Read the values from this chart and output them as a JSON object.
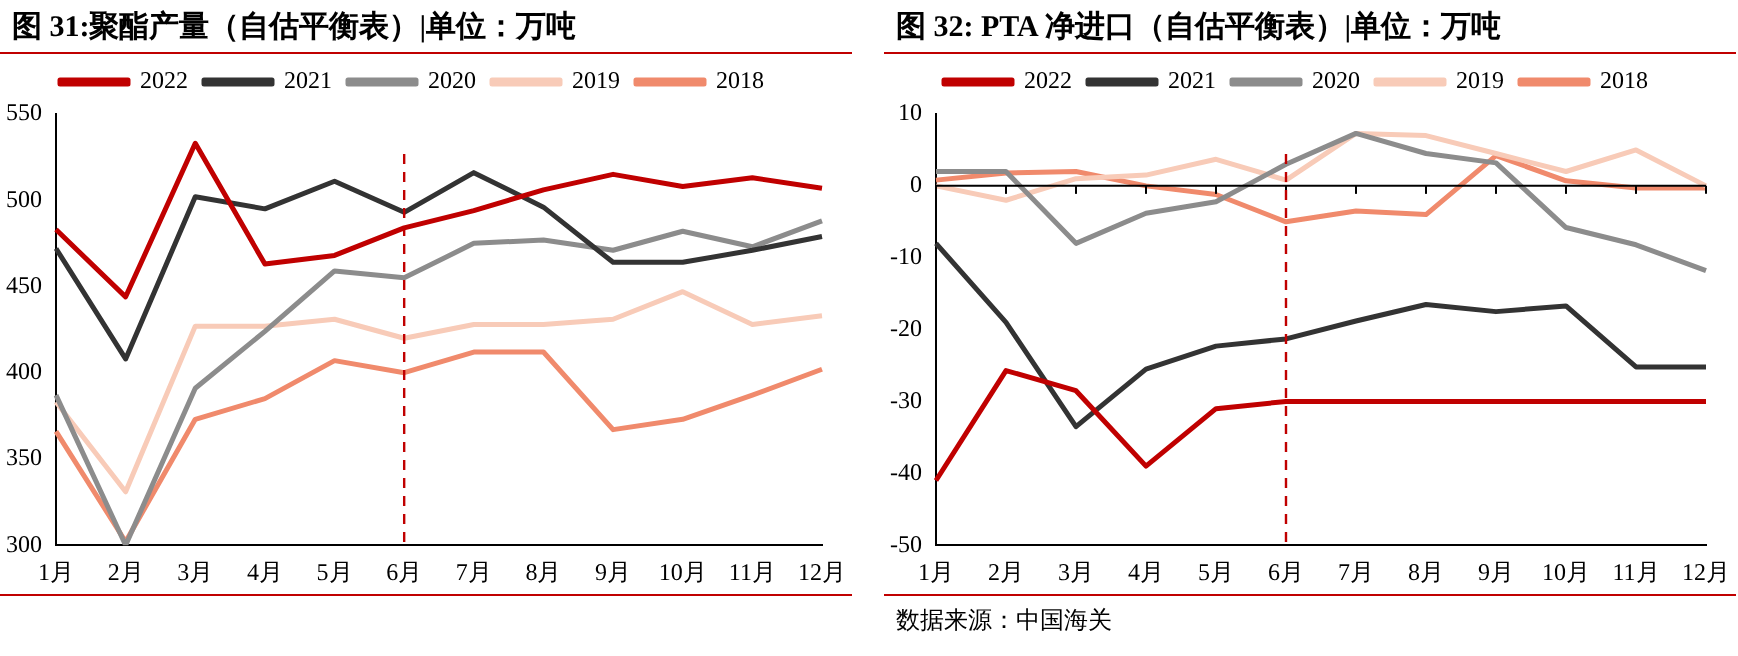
{
  "chart_data": [
    {
      "type": "line",
      "title": "图 31:聚酯产量（自估平衡表）|单位：万吨",
      "categories": [
        "1月",
        "2月",
        "3月",
        "4月",
        "5月",
        "6月",
        "7月",
        "8月",
        "9月",
        "10月",
        "11月",
        "12月"
      ],
      "series": [
        {
          "name": "2022",
          "color": "#c00000",
          "values": [
            483,
            444,
            533,
            463,
            468,
            484,
            494,
            506,
            515,
            508,
            513,
            507
          ]
        },
        {
          "name": "2021",
          "color": "#333333",
          "values": [
            472,
            408,
            502,
            495,
            511,
            493,
            516,
            496,
            464,
            464,
            471,
            479
          ]
        },
        {
          "name": "2020",
          "color": "#8c8c8c",
          "values": [
            387,
            300,
            391,
            424,
            459,
            455,
            475,
            477,
            471,
            482,
            473,
            488
          ]
        },
        {
          "name": "2019",
          "color": "#f8cbb8",
          "values": [
            383,
            331,
            427,
            427,
            431,
            420,
            428,
            428,
            431,
            447,
            428,
            433
          ]
        },
        {
          "name": "2018",
          "color": "#f08a6c",
          "values": [
            366,
            302,
            373,
            385,
            407,
            400,
            412,
            412,
            367,
            373,
            387,
            402
          ]
        }
      ],
      "ylim": [
        300,
        550
      ],
      "yticks": [
        300,
        350,
        400,
        450,
        500,
        550
      ],
      "grid": false,
      "legend": "top",
      "marker": "none",
      "line_style": "solid",
      "ref_lines": [
        {
          "axis": "x",
          "value": "6月",
          "color": "#c00000",
          "line_style": "dashed"
        }
      ]
    },
    {
      "type": "line",
      "title": "图 32: PTA 净进口（自估平衡表）|单位：万吨",
      "categories": [
        "1月",
        "2月",
        "3月",
        "4月",
        "5月",
        "6月",
        "7月",
        "8月",
        "9月",
        "10月",
        "11月",
        "12月"
      ],
      "series": [
        {
          "name": "2022",
          "color": "#c00000",
          "values": [
            -41,
            -25.7,
            -28.5,
            -39,
            -31,
            -30,
            -30,
            -30,
            -30,
            -30,
            -30,
            -30
          ]
        },
        {
          "name": "2021",
          "color": "#333333",
          "values": [
            -8,
            -19,
            -33.5,
            -25.5,
            -22.3,
            -21.3,
            -18.8,
            -16.5,
            -17.5,
            -16.7,
            -25.2,
            -25.2
          ]
        },
        {
          "name": "2020",
          "color": "#8c8c8c",
          "values": [
            2,
            2,
            -8,
            -3.8,
            -2.2,
            3,
            7.3,
            4.5,
            3.2,
            -5.8,
            -8.2,
            -11.8
          ]
        },
        {
          "name": "2019",
          "color": "#f8cbb8",
          "values": [
            0,
            -2,
            1,
            1.5,
            3.7,
            0.8,
            7.3,
            7,
            4.5,
            2,
            5,
            0
          ]
        },
        {
          "name": "2018",
          "color": "#f08a6c",
          "values": [
            0.8,
            1.8,
            2,
            0,
            -1.2,
            -5,
            -3.5,
            -4,
            4.2,
            0.7,
            -0.3,
            -0.3
          ]
        }
      ],
      "ylim": [
        -50,
        10
      ],
      "yticks": [
        -50,
        -40,
        -30,
        -20,
        -10,
        0,
        10
      ],
      "grid": false,
      "legend": "top",
      "marker": "none",
      "line_style": "solid",
      "ref_lines": [
        {
          "axis": "x",
          "value": "6月",
          "color": "#c00000",
          "line_style": "dashed"
        }
      ],
      "annotations": [
        "数据来源：中国海关"
      ]
    }
  ]
}
